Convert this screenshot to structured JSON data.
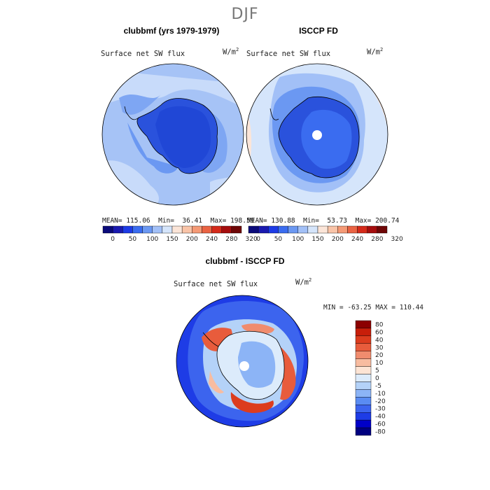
{
  "figure": {
    "title": "DJF",
    "units": "W/m",
    "units_exp": "2"
  },
  "colors": {
    "abs_palette": [
      "#0a0a7a",
      "#1a1ab0",
      "#1d3be6",
      "#3a6cf0",
      "#6b98f2",
      "#a2c0f7",
      "#d5e5fb",
      "#fbe5d8",
      "#f9c4a8",
      "#f59a76",
      "#ea6343",
      "#d52a1a",
      "#a50d0d",
      "#6e0606"
    ],
    "diff_palette": [
      "#000080",
      "#0000c8",
      "#1e3ce6",
      "#3c64ee",
      "#5a8cf2",
      "#8cb4f6",
      "#b4d2f8",
      "#dcebfb",
      "#fde4d4",
      "#f8bca0",
      "#f08c6e",
      "#e85c3c",
      "#dc3c1e",
      "#c81e0a",
      "#8c0000"
    ],
    "land_outline": "#000000"
  },
  "chart_data": [
    {
      "type": "heatmap",
      "projection": "south-polar-stereographic",
      "title": "clubbmf (yrs 1979-1979)",
      "variable": "Surface net SW flux",
      "stats": {
        "mean": "115.06",
        "min": "36.41",
        "max": "198.59"
      },
      "colorbar_labels": [
        "0",
        "50",
        "100",
        "150",
        "200",
        "240",
        "280",
        "320"
      ]
    },
    {
      "type": "heatmap",
      "projection": "south-polar-stereographic",
      "title": "ISCCP FD",
      "variable": "Surface net SW flux",
      "stats": {
        "mean": "130.88",
        "min": "53.73",
        "max": "200.74"
      },
      "colorbar_labels": [
        "0",
        "50",
        "100",
        "150",
        "200",
        "240",
        "280",
        "320"
      ]
    },
    {
      "type": "heatmap",
      "projection": "south-polar-stereographic",
      "title": "clubbmf - ISCCP FD",
      "variable": "Surface net SW flux",
      "stats": {
        "min": "-63.25",
        "max": "110.44"
      },
      "colorbar_labels": [
        "80",
        "60",
        "40",
        "30",
        "20",
        "10",
        "5",
        "0",
        "-5",
        "-10",
        "-20",
        "-30",
        "-40",
        "-60",
        "-80"
      ]
    }
  ]
}
